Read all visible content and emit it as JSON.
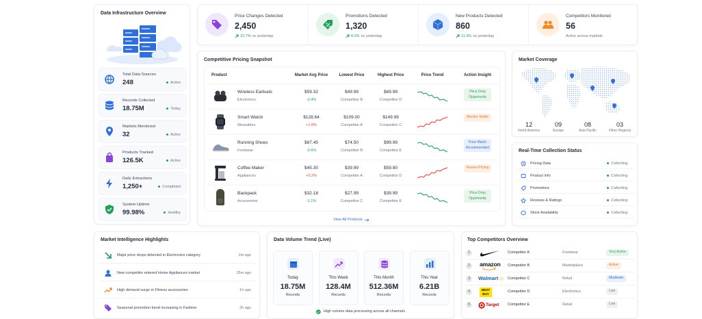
{
  "infrastructure": {
    "title": "Data Infrastructure Overview",
    "items": [
      {
        "label": "Total Data Sources",
        "value": "248",
        "status": "Active"
      },
      {
        "label": "Records Collected",
        "value": "18.75M",
        "status": "Today"
      },
      {
        "label": "Markets Monitored",
        "value": "32",
        "status": "Active"
      },
      {
        "label": "Products Tracked",
        "value": "126.5K",
        "status": "Active"
      },
      {
        "label": "Daily Extractions",
        "value": "1,250+",
        "status": "Completed"
      },
      {
        "label": "System Uptime",
        "value": "99.98%",
        "status": "Healthy"
      }
    ]
  },
  "kpis": [
    {
      "title": "Price Changes Detected",
      "value": "2,450",
      "change": "15.7%",
      "note": "vs yesterday"
    },
    {
      "title": "Promotions Detected",
      "value": "1,320",
      "change": "8.2%",
      "note": "vs yesterday"
    },
    {
      "title": "New Products Detected",
      "value": "860",
      "change": "11.3%",
      "note": "vs yesterday"
    },
    {
      "title": "Competitors Monitored",
      "value": "56",
      "note": "Active across markets"
    }
  ],
  "pricing": {
    "title": "Competitive Pricing Snapshot",
    "columns": [
      "Product",
      "Market Avg Price",
      "Lowest Price",
      "Highest Price",
      "Price Trend",
      "Action Insight"
    ],
    "rows": [
      {
        "product": "Wireless Earbuds",
        "category": "Electronics",
        "avg": "$59.32",
        "change": "-2.4%",
        "lowest": "$49.99",
        "lowest_by": "Competitor B",
        "highest": "$69.99",
        "highest_by": "Competitor D",
        "insight": "Price Drop Opportunity",
        "insight_color": "#2e9e4f"
      },
      {
        "product": "Smart Watch",
        "category": "Wearables",
        "avg": "$128.64",
        "change": "+1.8%",
        "lowest": "$109.00",
        "lowest_by": "Competitor A",
        "highest": "$149.99",
        "highest_by": "Competitor C",
        "insight": "Monitor Stable",
        "insight_color": "#e07a1f"
      },
      {
        "product": "Running Shoes",
        "category": "Footwear",
        "avg": "$87.45",
        "change": "-0.6%",
        "lowest": "$74.50",
        "lowest_by": "Competitor B",
        "highest": "$99.99",
        "highest_by": "Competitor E",
        "insight": "Price Match Recommended",
        "insight_color": "#2f6fd6"
      },
      {
        "product": "Coffee Maker",
        "category": "Appliances",
        "avg": "$45.30",
        "change": "+0.2%",
        "lowest": "$39.99",
        "lowest_by": "Competitor A",
        "highest": "$59.90",
        "highest_by": "Competitor D",
        "insight": "Review Pricing",
        "insight_color": "#e07a1f"
      },
      {
        "product": "Backpack",
        "category": "Accessories",
        "avg": "$32.18",
        "change": "-1.1%",
        "lowest": "$27.99",
        "lowest_by": "Competitor C",
        "highest": "$39.99",
        "highest_by": "Competitor E",
        "insight": "Price Drop Opportunity",
        "insight_color": "#2e9e4f"
      }
    ],
    "link": "View All Products"
  },
  "coverage": {
    "title": "Market Coverage",
    "regions": [
      {
        "count": "12",
        "name": "North America"
      },
      {
        "count": "09",
        "name": "Europe"
      },
      {
        "count": "08",
        "name": "Asia Pacific"
      },
      {
        "count": "03",
        "name": "Other Regions"
      }
    ]
  },
  "collection": {
    "title": "Real-Time Collection Status",
    "items": [
      {
        "label": "Pricing Data",
        "status": "Collecting"
      },
      {
        "label": "Product Info",
        "status": "Collecting"
      },
      {
        "label": "Promotions",
        "status": "Collecting"
      },
      {
        "label": "Reviews & Ratings",
        "status": "Collecting"
      },
      {
        "label": "Stock Availability",
        "status": "Collecting"
      }
    ]
  },
  "highlights": {
    "title": "Market Intelligence Highlights",
    "items": [
      {
        "text": "Major price drops detected in Electronics category",
        "time": "2m ago"
      },
      {
        "text": "New competitor entered Home Appliances market",
        "time": "25m ago"
      },
      {
        "text": "High demand surge in Fitness accessories",
        "time": "1h ago"
      },
      {
        "text": "Seasonal promotion trend increasing in Fashion",
        "time": "2h ago"
      }
    ]
  },
  "volume": {
    "title": "Data Volume Trend (Live)",
    "cards": [
      {
        "period": "Today",
        "value": "18.75M",
        "unit": "Records"
      },
      {
        "period": "This Week",
        "value": "128.4M",
        "unit": "Records"
      },
      {
        "period": "This Month",
        "value": "512.36M",
        "unit": "Records"
      },
      {
        "period": "This Year",
        "value": "6.21B",
        "unit": "Records"
      }
    ],
    "footer": "High volume data processing across all channels"
  },
  "competitors": {
    "title": "Top Competitors Overview",
    "rows": [
      {
        "rank": "1",
        "name": "Competitor A",
        "category": "Footwear",
        "status": "Very Active",
        "status_color": "#2e9e4f"
      },
      {
        "rank": "2",
        "logo": "amazon",
        "name": "Competitor B",
        "category": "Marketplace",
        "status": "Active",
        "status_color": "#e07a1f"
      },
      {
        "rank": "3",
        "logo": "Walmart",
        "name": "Competitor C",
        "category": "Retail",
        "status": "Moderate",
        "status_color": "#2f6fd6"
      },
      {
        "rank": "4",
        "logo": "BEST BUY",
        "name": "Competitor D",
        "category": "Electronics",
        "status": "Low",
        "status_color": "#6b7280"
      },
      {
        "rank": "5",
        "logo": "Target",
        "name": "Competitor E",
        "category": "Retail",
        "status": "Low",
        "status_color": "#6b7280"
      }
    ]
  }
}
